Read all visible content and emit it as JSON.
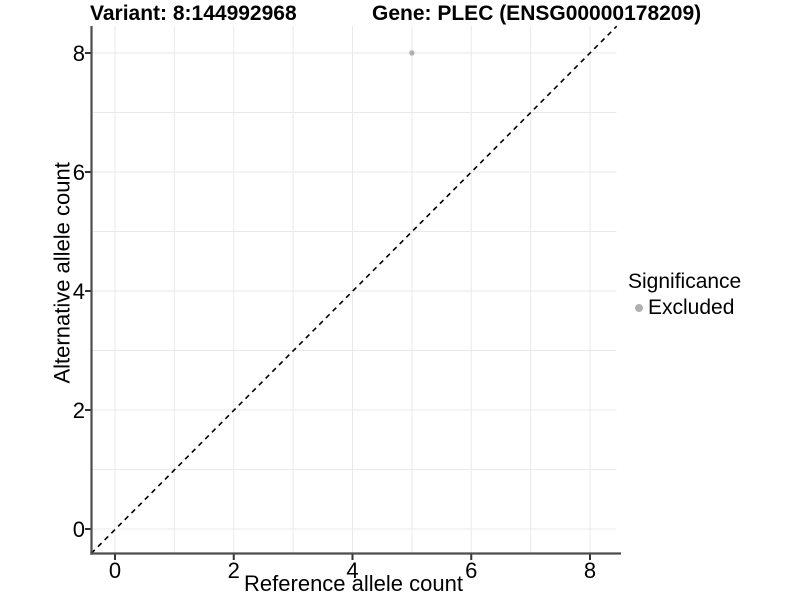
{
  "chart_data": {
    "type": "scatter",
    "title_left": "Variant: 8:144992968",
    "title_right": "Gene: PLEC (ENSG00000178209)",
    "xlabel": "Reference allele count",
    "ylabel": "Alternative allele count",
    "x_ticks": [
      0,
      2,
      4,
      6,
      8
    ],
    "y_ticks": [
      0,
      2,
      4,
      6,
      8
    ],
    "grid_values": [
      0,
      1,
      2,
      3,
      4,
      5,
      6,
      7,
      8
    ],
    "xlim": [
      -0.4,
      8.45
    ],
    "ylim": [
      -0.41,
      8.45
    ],
    "grid": "on",
    "points": [
      {
        "x": 5,
        "y": 8,
        "significance": "Excluded"
      }
    ],
    "identity_line": {
      "style": "dashed",
      "from": [
        -0.4,
        -0.41
      ],
      "to": [
        8.45,
        8.45
      ]
    },
    "legend": {
      "title": "Significance",
      "position": "right",
      "entries": [
        {
          "label": "Excluded",
          "color": "#b0b0b0"
        }
      ]
    }
  },
  "colors": {
    "background": "#ffffff",
    "point": "#b0b0b0",
    "gridline": "#e9e9e9",
    "axis_line": "#4d4d4d",
    "tick_mark": "#333333",
    "identity_line": "#000000",
    "text": "#000000"
  }
}
